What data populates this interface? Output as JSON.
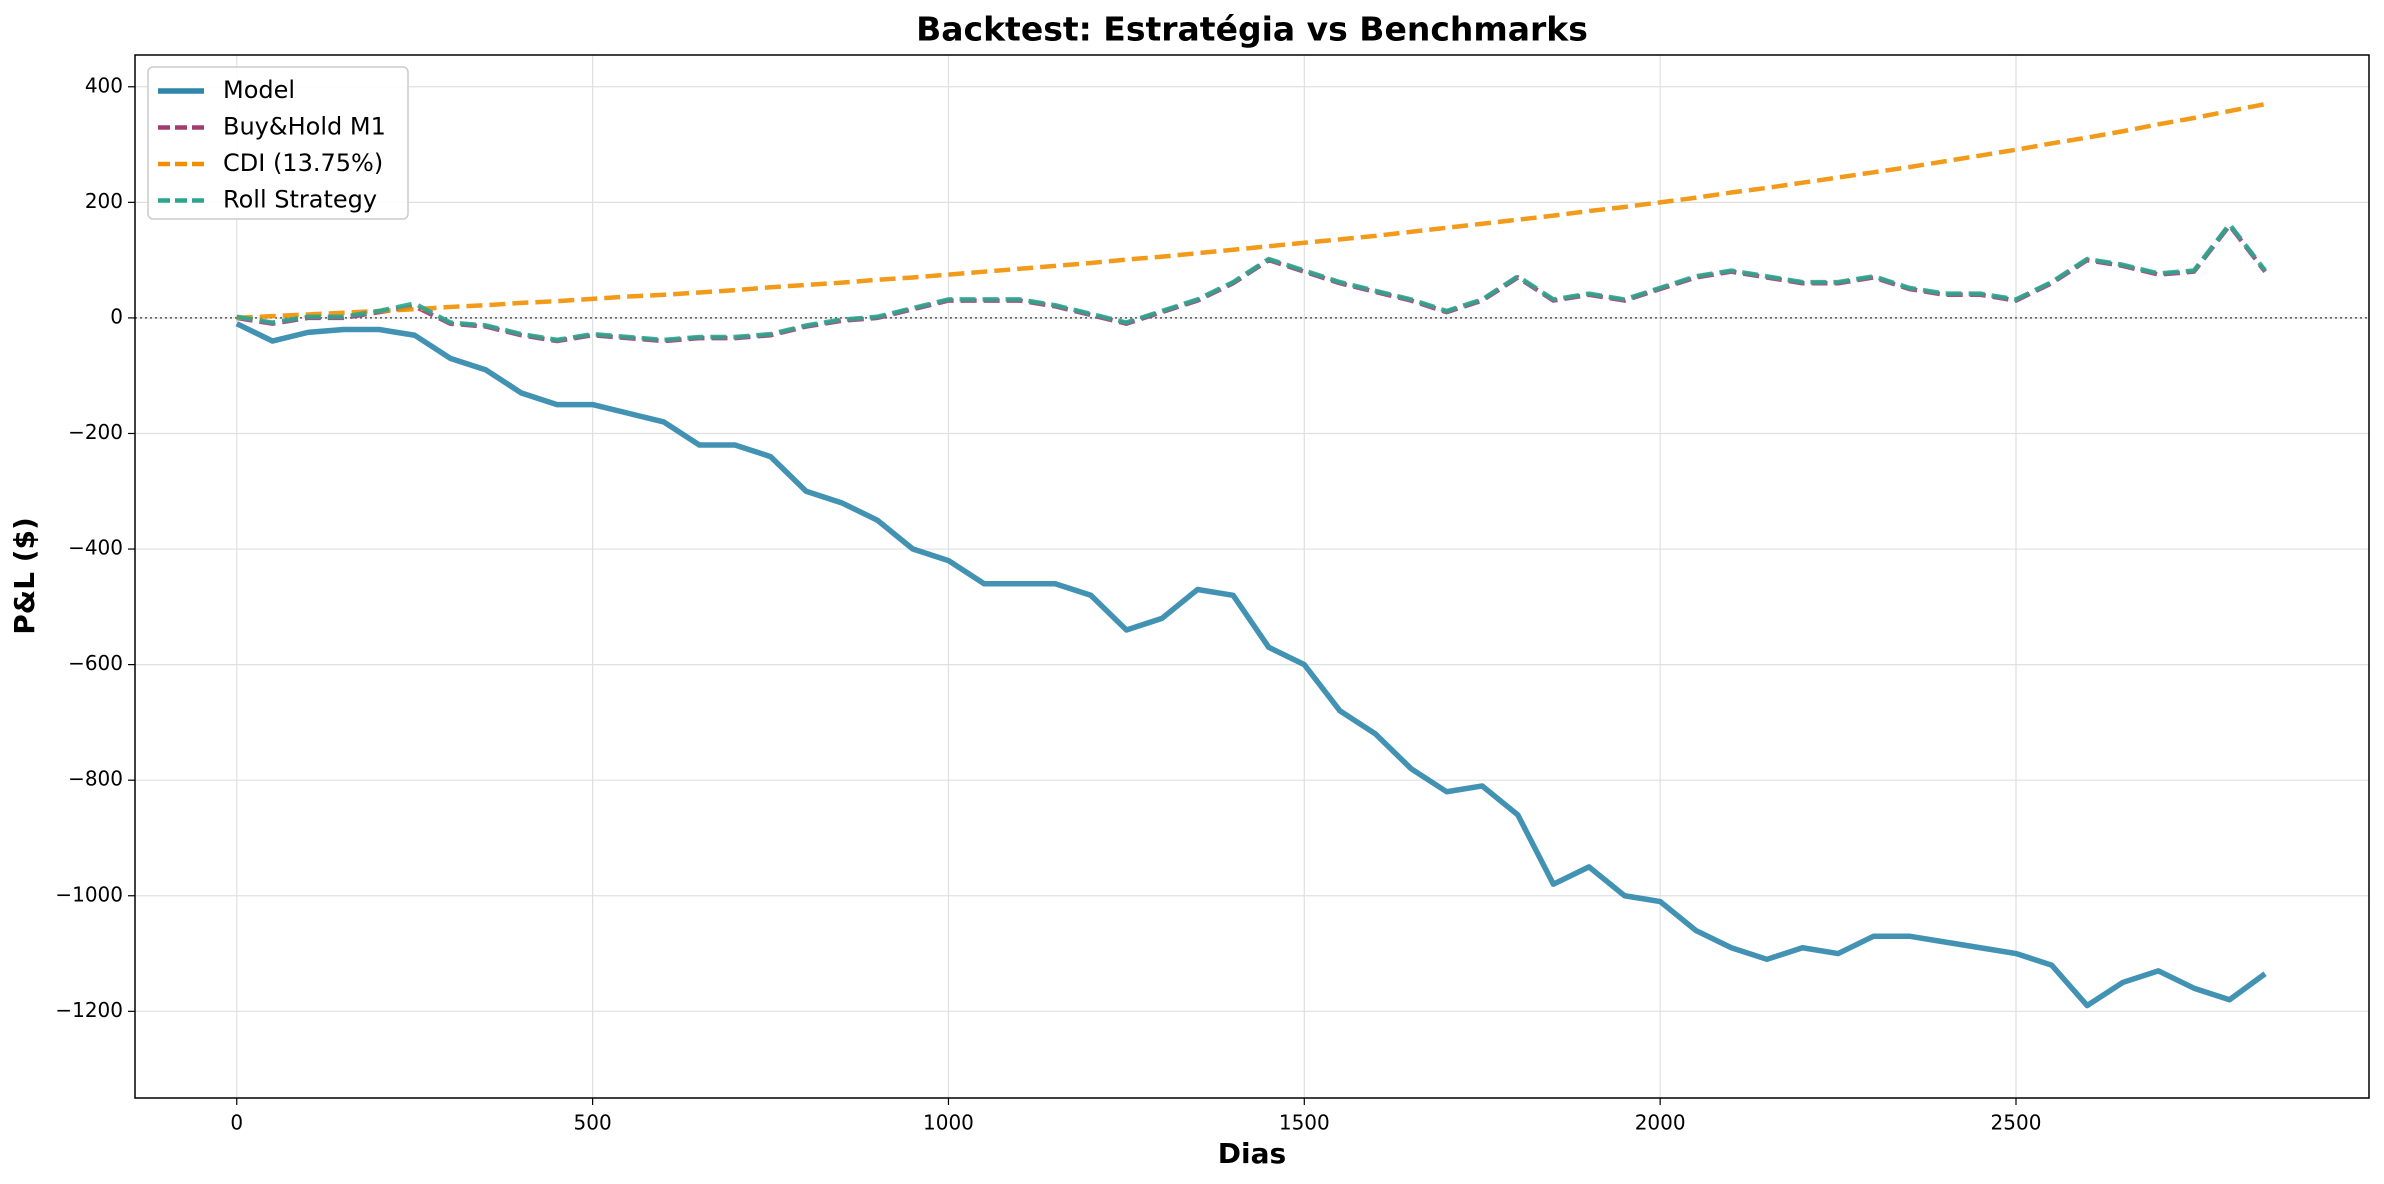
{
  "chart_data": {
    "type": "line",
    "title": "Backtest: Estratégia vs Benchmarks",
    "xlabel": "Dias",
    "ylabel": "P&L ($)",
    "x": [
      0,
      50,
      100,
      150,
      200,
      250,
      300,
      350,
      400,
      450,
      500,
      550,
      600,
      650,
      700,
      750,
      800,
      850,
      900,
      950,
      1000,
      1050,
      1100,
      1150,
      1200,
      1250,
      1300,
      1350,
      1400,
      1450,
      1500,
      1550,
      1600,
      1650,
      1700,
      1750,
      1800,
      1850,
      1900,
      1950,
      2000,
      2050,
      2100,
      2150,
      2200,
      2250,
      2300,
      2350,
      2400,
      2450,
      2500,
      2550,
      2600,
      2650,
      2700,
      2750,
      2800,
      2850
    ],
    "series": [
      {
        "name": "Model",
        "color": "#2e86ab",
        "dash": false,
        "values": [
          -10,
          -40,
          -25,
          -20,
          -20,
          -30,
          -70,
          -90,
          -130,
          -150,
          -150,
          -165,
          -180,
          -220,
          -220,
          -240,
          -300,
          -320,
          -350,
          -400,
          -420,
          -460,
          -460,
          -460,
          -480,
          -540,
          -520,
          -470,
          -480,
          -570,
          -600,
          -680,
          -720,
          -780,
          -820,
          -810,
          -860,
          -980,
          -950,
          -1000,
          -1010,
          -1060,
          -1090,
          -1110,
          -1090,
          -1100,
          -1070,
          -1070,
          -1080,
          -1090,
          -1100,
          -1120,
          -1190,
          -1150,
          -1130,
          -1160,
          -1180,
          -1135
        ]
      },
      {
        "name": "Buy&Hold M1",
        "color": "#a23b72",
        "dash": true,
        "values": [
          0,
          -10,
          0,
          0,
          10,
          20,
          -10,
          -15,
          -30,
          -40,
          -30,
          -35,
          -40,
          -35,
          -35,
          -30,
          -15,
          -5,
          0,
          15,
          30,
          30,
          30,
          20,
          5,
          -10,
          10,
          30,
          60,
          100,
          80,
          60,
          45,
          30,
          10,
          30,
          70,
          30,
          40,
          30,
          50,
          70,
          80,
          70,
          60,
          60,
          70,
          50,
          40,
          40,
          30,
          60,
          100,
          90,
          75,
          80,
          160,
          80
        ]
      },
      {
        "name": "CDI (13.75%)",
        "color": "#f18f01",
        "dash": true,
        "values": [
          0,
          3,
          6,
          9,
          12,
          15,
          19,
          22,
          26,
          29,
          33,
          37,
          40,
          44,
          48,
          53,
          57,
          61,
          66,
          70,
          75,
          80,
          85,
          90,
          95,
          101,
          106,
          112,
          118,
          124,
          130,
          136,
          142,
          149,
          156,
          163,
          170,
          177,
          185,
          192,
          200,
          208,
          217,
          225,
          234,
          243,
          252,
          261,
          271,
          281,
          291,
          302,
          312,
          323,
          335,
          346,
          358,
          370
        ]
      },
      {
        "name": "Roll Strategy",
        "color": "#2ca58d",
        "dash": true,
        "values": [
          2,
          -8,
          2,
          2,
          12,
          25,
          -8,
          -13,
          -28,
          -38,
          -28,
          -33,
          -38,
          -33,
          -33,
          -28,
          -13,
          -3,
          2,
          17,
          32,
          32,
          32,
          22,
          7,
          -8,
          12,
          32,
          62,
          102,
          82,
          62,
          47,
          32,
          12,
          32,
          72,
          32,
          42,
          32,
          52,
          72,
          82,
          72,
          62,
          62,
          72,
          52,
          42,
          42,
          32,
          62,
          102,
          92,
          77,
          82,
          162,
          82
        ]
      }
    ],
    "xlim": [
      -143,
      2996
    ],
    "ylim": [
      -1350,
      455
    ],
    "xticks": [
      0,
      500,
      1000,
      1500,
      2000,
      2500
    ],
    "yticks": [
      {
        "value": -1200,
        "label": "−1200"
      },
      {
        "value": -1000,
        "label": "−1000"
      },
      {
        "value": -800,
        "label": "−800"
      },
      {
        "value": -600,
        "label": "−600"
      },
      {
        "value": -400,
        "label": "−400"
      },
      {
        "value": -200,
        "label": "−200"
      },
      0,
      200,
      400
    ],
    "reference_line": 0,
    "grid": true,
    "legend": "upper-left"
  }
}
